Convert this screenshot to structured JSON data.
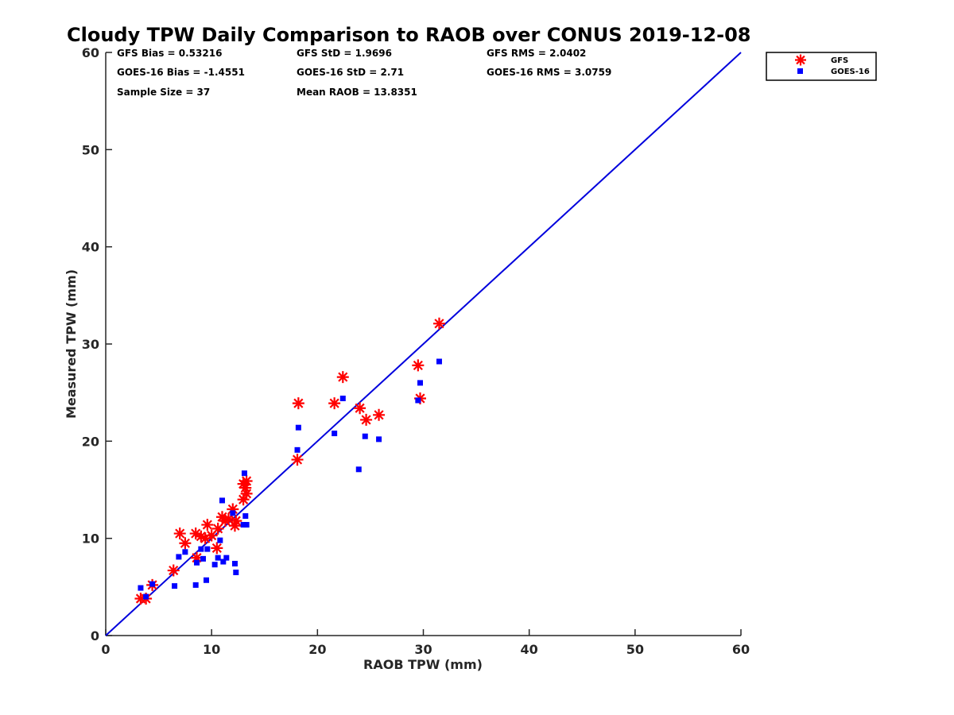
{
  "chart_data": {
    "type": "scatter",
    "title": "Cloudy TPW Daily Comparison to RAOB over CONUS 2019-12-08",
    "xlabel": "RAOB TPW (mm)",
    "ylabel": "Measured TPW (mm)",
    "xlim": [
      0,
      60
    ],
    "ylim": [
      0,
      60
    ],
    "xticks": [
      "0",
      "10",
      "20",
      "30",
      "40",
      "50",
      "60"
    ],
    "yticks": [
      "0",
      "10",
      "20",
      "30",
      "40",
      "50",
      "60"
    ],
    "grid": false,
    "legend_position": "top-right outside",
    "reference_line": {
      "from": [
        0,
        0
      ],
      "to": [
        60,
        60
      ],
      "color": "#0000dd"
    },
    "stats": {
      "gfs_bias": "GFS Bias = 0.53216",
      "goes_bias": "GOES-16 Bias = -1.4551",
      "sample_size": "Sample Size = 37",
      "gfs_std": "GFS StD = 1.9696",
      "goes_std": "GOES-16 StD = 2.71",
      "mean_raob": "Mean RAOB = 13.8351",
      "gfs_rms": "GFS RMS = 2.0402",
      "goes_rms": "GOES-16 RMS = 3.0759"
    },
    "series": [
      {
        "name": "GFS",
        "color": "#ff0000",
        "marker": "asterisk",
        "points": [
          [
            3.3,
            3.8
          ],
          [
            3.8,
            3.8
          ],
          [
            4.4,
            5.2
          ],
          [
            6.4,
            6.7
          ],
          [
            7.0,
            10.5
          ],
          [
            7.5,
            9.5
          ],
          [
            8.5,
            10.5
          ],
          [
            8.6,
            8.0
          ],
          [
            9.0,
            10.2
          ],
          [
            9.4,
            10.0
          ],
          [
            9.6,
            11.4
          ],
          [
            10.0,
            10.3
          ],
          [
            10.5,
            9.0
          ],
          [
            10.6,
            11.0
          ],
          [
            11.0,
            12.2
          ],
          [
            11.3,
            11.8
          ],
          [
            11.6,
            12.0
          ],
          [
            12.0,
            13.0
          ],
          [
            12.2,
            11.3
          ],
          [
            12.3,
            11.8
          ],
          [
            13.0,
            14.0
          ],
          [
            13.0,
            15.6
          ],
          [
            13.2,
            15.2
          ],
          [
            13.3,
            14.6
          ],
          [
            13.3,
            15.9
          ],
          [
            18.1,
            18.1
          ],
          [
            18.2,
            23.9
          ],
          [
            21.6,
            23.9
          ],
          [
            22.4,
            26.6
          ],
          [
            24.0,
            23.4
          ],
          [
            24.6,
            22.2
          ],
          [
            25.8,
            22.7
          ],
          [
            29.5,
            27.8
          ],
          [
            29.7,
            24.4
          ],
          [
            31.5,
            32.1
          ]
        ]
      },
      {
        "name": "GOES-16",
        "color": "#0000ff",
        "marker": "square",
        "points": [
          [
            3.3,
            4.9
          ],
          [
            3.8,
            4.0
          ],
          [
            4.4,
            5.3
          ],
          [
            6.5,
            5.1
          ],
          [
            6.9,
            8.1
          ],
          [
            7.5,
            8.6
          ],
          [
            8.5,
            5.2
          ],
          [
            8.6,
            7.5
          ],
          [
            9.0,
            8.9
          ],
          [
            9.2,
            7.9
          ],
          [
            9.5,
            5.7
          ],
          [
            9.6,
            8.9
          ],
          [
            10.3,
            7.3
          ],
          [
            10.6,
            8.0
          ],
          [
            10.8,
            9.8
          ],
          [
            11.0,
            13.9
          ],
          [
            11.1,
            7.6
          ],
          [
            11.4,
            8.0
          ],
          [
            12.0,
            12.6
          ],
          [
            12.2,
            7.4
          ],
          [
            12.3,
            6.5
          ],
          [
            13.0,
            11.4
          ],
          [
            13.1,
            16.7
          ],
          [
            13.2,
            12.3
          ],
          [
            13.3,
            11.4
          ],
          [
            18.1,
            19.1
          ],
          [
            18.2,
            21.4
          ],
          [
            21.6,
            20.8
          ],
          [
            22.4,
            24.4
          ],
          [
            23.9,
            17.1
          ],
          [
            24.5,
            20.5
          ],
          [
            25.8,
            20.2
          ],
          [
            29.5,
            24.2
          ],
          [
            29.7,
            26.0
          ],
          [
            31.5,
            28.2
          ]
        ]
      }
    ]
  }
}
